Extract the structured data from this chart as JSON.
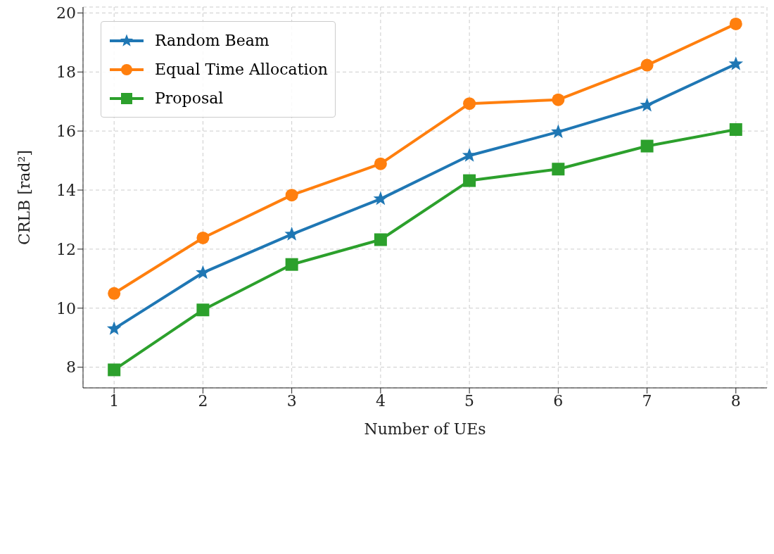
{
  "chart_data": {
    "type": "line",
    "xlabel": "Number of UEs",
    "ylabel": "CRLB [rad²]",
    "x": [
      1,
      2,
      3,
      4,
      5,
      6,
      7,
      8
    ],
    "series": [
      {
        "name": "Random Beam",
        "color": "#1f77b4",
        "marker": "star",
        "values": [
          9.3,
          11.2,
          12.5,
          13.7,
          15.17,
          15.97,
          16.87,
          18.27
        ]
      },
      {
        "name": "Equal Time Allocation",
        "color": "#ff7f0e",
        "marker": "circle",
        "values": [
          10.5,
          12.38,
          13.83,
          14.89,
          16.93,
          17.06,
          18.23,
          19.63
        ]
      },
      {
        "name": "Proposal",
        "color": "#2ca02c",
        "marker": "square",
        "values": [
          7.91,
          9.94,
          11.48,
          12.32,
          14.32,
          14.71,
          15.49,
          16.05
        ]
      }
    ],
    "xlim": [
      0.65,
      8.35
    ],
    "xticks": [
      1,
      2,
      3,
      4,
      5,
      6,
      7,
      8
    ],
    "ylim": [
      7.3,
      20.2
    ],
    "yticks": [
      8,
      10,
      12,
      14,
      16,
      18,
      20
    ],
    "grid": true,
    "legend": "top left",
    "line_style": "solid"
  }
}
